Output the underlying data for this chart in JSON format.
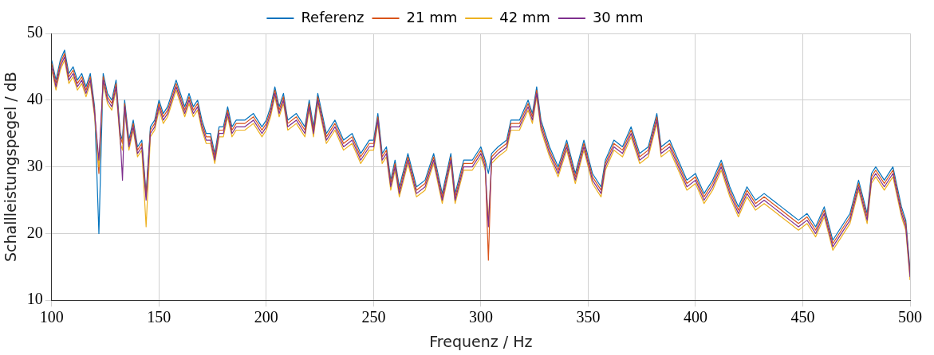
{
  "chart_data": {
    "type": "line",
    "xlabel": "Frequenz / Hz",
    "ylabel": "Schallleistungspegel / dB",
    "xlim": [
      100,
      500
    ],
    "xticks": [
      100,
      150,
      200,
      250,
      300,
      350,
      400,
      450,
      500
    ],
    "ylim": [
      10,
      50
    ],
    "yticks": [
      10,
      20,
      30,
      40,
      50
    ],
    "grid": true,
    "legend": "top",
    "marker": "none",
    "line_style": "solid",
    "x": [
      100,
      102,
      104,
      106,
      108,
      110,
      112,
      114,
      116,
      118,
      120,
      122,
      124,
      126,
      128,
      130,
      132,
      133,
      134,
      136,
      138,
      140,
      142,
      144,
      146,
      148,
      150,
      152,
      154,
      156,
      158,
      160,
      162,
      164,
      166,
      168,
      170,
      172,
      174,
      176,
      178,
      180,
      182,
      184,
      186,
      190,
      194,
      198,
      200,
      202,
      204,
      206,
      208,
      210,
      214,
      218,
      220,
      222,
      224,
      228,
      232,
      236,
      240,
      244,
      248,
      250,
      252,
      254,
      256,
      258,
      260,
      262,
      266,
      270,
      274,
      278,
      282,
      286,
      288,
      292,
      296,
      300,
      302,
      303.5,
      305,
      308,
      312,
      314,
      318,
      322,
      324,
      326,
      328,
      330,
      332,
      336,
      340,
      344,
      348,
      352,
      356,
      358,
      362,
      366,
      370,
      374,
      378,
      382,
      384,
      388,
      392,
      396,
      400,
      404,
      408,
      412,
      416,
      420,
      424,
      428,
      432,
      436,
      440,
      444,
      448,
      452,
      456,
      460,
      464,
      468,
      472,
      476,
      480,
      482,
      484,
      488,
      492,
      496,
      498,
      500
    ],
    "series": [
      {
        "name": "Referenz",
        "color": "#0072bd",
        "values": [
          46,
          43,
          46,
          47.5,
          44,
          45,
          43,
          44,
          42,
          44,
          39,
          20,
          44,
          41,
          40,
          43,
          35,
          34,
          40,
          34,
          37,
          33,
          34,
          26,
          36,
          37,
          40,
          38,
          39,
          41,
          43,
          41,
          39,
          41,
          39,
          40,
          37,
          35,
          35,
          32,
          36,
          36,
          39,
          36,
          37,
          37,
          38,
          36,
          37,
          39,
          42,
          39,
          41,
          37,
          38,
          36,
          40,
          36,
          41,
          35,
          37,
          34,
          35,
          32,
          34,
          34,
          38,
          32,
          33,
          28,
          31,
          27,
          32,
          27,
          28,
          32,
          26,
          32,
          26,
          31,
          31,
          33,
          31,
          29,
          32,
          33,
          34,
          37,
          37,
          40,
          38,
          42,
          37,
          35,
          33,
          30,
          34,
          29,
          34,
          29,
          27,
          31,
          34,
          33,
          36,
          32,
          33,
          38,
          33,
          34,
          31,
          28,
          29,
          26,
          28,
          31,
          27,
          24,
          27,
          25,
          26,
          25,
          24,
          23,
          22,
          23,
          21,
          24,
          19,
          21,
          23,
          28,
          23,
          29,
          30,
          28,
          30,
          24,
          22,
          14.5
        ]
      },
      {
        "name": "21 mm",
        "color": "#d95319",
        "values": [
          45.5,
          42.5,
          45.5,
          47,
          43.5,
          44.5,
          42.5,
          43.5,
          41.5,
          43.5,
          38.5,
          29,
          43.5,
          40.5,
          39.5,
          42.5,
          34.5,
          33.5,
          39.5,
          33.5,
          36.5,
          32.5,
          33.5,
          25.5,
          35.5,
          36.5,
          39.5,
          37.5,
          38.5,
          40.5,
          42.5,
          40.5,
          38.5,
          40.5,
          38.5,
          39.5,
          36.5,
          34.5,
          34.5,
          31.5,
          35.5,
          35.5,
          38.5,
          35.5,
          36.5,
          36.5,
          37.5,
          35.5,
          36.5,
          38.5,
          41.5,
          38.5,
          40.5,
          36.5,
          37.5,
          35.5,
          39.5,
          35.5,
          40.5,
          34.5,
          36.5,
          33.5,
          34.5,
          31.5,
          33.5,
          33.5,
          37.5,
          31.5,
          32.5,
          27.5,
          30.5,
          26.5,
          31.5,
          26.5,
          27.5,
          31.5,
          25.5,
          31.5,
          25.5,
          30.5,
          30.5,
          32.5,
          30.5,
          16,
          31.5,
          32.5,
          33.5,
          36.5,
          36.5,
          39.5,
          37.5,
          41.5,
          36.5,
          34.5,
          32.5,
          29.5,
          33.5,
          28.5,
          33.5,
          28.5,
          26.5,
          30.5,
          33.5,
          32.5,
          35.5,
          31.5,
          32.5,
          37.5,
          32.5,
          33.5,
          30.5,
          27.5,
          28.5,
          25.5,
          27.5,
          30.5,
          26.5,
          23.5,
          26.5,
          24.5,
          25.5,
          24.5,
          23.5,
          22.5,
          21.5,
          22.5,
          20.5,
          23.5,
          18.5,
          20.5,
          22.5,
          27.5,
          22.5,
          28.5,
          29.5,
          27.5,
          29.5,
          23.5,
          21.5,
          14
        ]
      },
      {
        "name": "42 mm",
        "color": "#edb120",
        "values": [
          44.5,
          41.5,
          44.5,
          46,
          42.5,
          43.5,
          41.5,
          42.5,
          40.5,
          42.5,
          37.5,
          30,
          42.5,
          39.5,
          38.5,
          41.5,
          33.5,
          32.5,
          38.5,
          32.5,
          35.5,
          31.5,
          32.5,
          21,
          34.5,
          35.5,
          38.5,
          36.5,
          37.5,
          39.5,
          41.5,
          39.5,
          37.5,
          39.5,
          37.5,
          38.5,
          35.5,
          33.5,
          33.5,
          30.5,
          34.5,
          34.5,
          37.5,
          34.5,
          35.5,
          35.5,
          36.5,
          34.5,
          35.5,
          37.5,
          40.5,
          37.5,
          39.5,
          35.5,
          36.5,
          34.5,
          38.5,
          34.5,
          39.5,
          33.5,
          35.5,
          32.5,
          33.5,
          30.5,
          32.5,
          32.5,
          36.5,
          30.5,
          31.5,
          26.5,
          29.5,
          25.5,
          30.5,
          25.5,
          26.5,
          30.5,
          24.5,
          30.5,
          24.5,
          29.5,
          29.5,
          31.5,
          29.5,
          22,
          30.5,
          31.5,
          32.5,
          35.5,
          35.5,
          38.5,
          36.5,
          40.5,
          35.5,
          33.5,
          31.5,
          28.5,
          32.5,
          27.5,
          32.5,
          27.5,
          25.5,
          29.5,
          32.5,
          31.5,
          34.5,
          30.5,
          31.5,
          36.5,
          31.5,
          32.5,
          29.5,
          26.5,
          27.5,
          24.5,
          26.5,
          29.5,
          25.5,
          22.5,
          25.5,
          23.5,
          24.5,
          23.5,
          22.5,
          21.5,
          20.5,
          21.5,
          19.5,
          22.5,
          17.5,
          19.5,
          21.5,
          26.5,
          21.5,
          27.5,
          28.5,
          26.5,
          28.5,
          22.5,
          20.5,
          13
        ]
      },
      {
        "name": "30 mm",
        "color": "#7e2f8e",
        "values": [
          45,
          42,
          45,
          46.5,
          43,
          44,
          42,
          43,
          41,
          43,
          38,
          31,
          43,
          40,
          39,
          42,
          34,
          28,
          39,
          33,
          36,
          32,
          33,
          25,
          35,
          36,
          39,
          37,
          38,
          40,
          42,
          40,
          38,
          40,
          38,
          39,
          36,
          34,
          34,
          31,
          35,
          35,
          38,
          35,
          36,
          36,
          37,
          35,
          36,
          38,
          41,
          38,
          40,
          36,
          37,
          35,
          39,
          35,
          40,
          34,
          36,
          33,
          34,
          31,
          33,
          33,
          37,
          31,
          32,
          27,
          30,
          26,
          31,
          26,
          27,
          31,
          25,
          31,
          25,
          30,
          30,
          32,
          30,
          21,
          31,
          32,
          33,
          36,
          36,
          39,
          37,
          41,
          36,
          34,
          32,
          29,
          33,
          28,
          33,
          28,
          26,
          30,
          33,
          32,
          35,
          31,
          32,
          37,
          32,
          33,
          30,
          27,
          28,
          25,
          27,
          30,
          26,
          23,
          26,
          24,
          25,
          24,
          23,
          22,
          21,
          22,
          20,
          23,
          18,
          20,
          22,
          27,
          22,
          28,
          29,
          27,
          29,
          23,
          21,
          13.5
        ]
      }
    ]
  }
}
